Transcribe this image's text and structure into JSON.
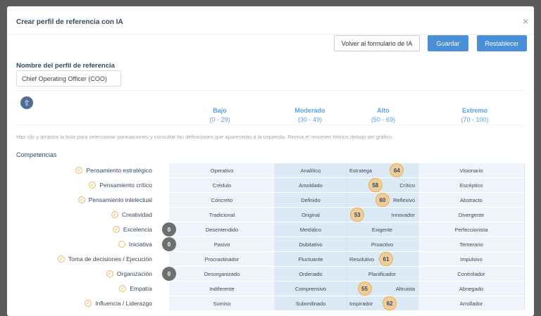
{
  "modal": {
    "title": "Crear perfil de referencia con IA",
    "close_icon": "×"
  },
  "toolbar": {
    "back": "Volver al formulario de IA",
    "save": "Guardar",
    "reset": "Restablecer"
  },
  "profile": {
    "label": "Nombre del perfil de referencia",
    "value": "Chief Operating Officer (COO)"
  },
  "levels": [
    {
      "name": "Bajo",
      "range": "(0 - 29)"
    },
    {
      "name": "Moderado",
      "range": "(30 - 49)"
    },
    {
      "name": "Alto",
      "range": "(50 - 69)"
    },
    {
      "name": "Extremo",
      "range": "(70 - 100)"
    }
  ],
  "hint": "Haz clic y arrastra la bola para seleccionar puntuaciones y consultar las definiciones que aparecerán a la izquierda. Revisa el resumen teórico debajo del gráfico.",
  "section": "Competencias",
  "colors": {
    "accent": "#4a90d9",
    "ball": "#f0b040",
    "ball_off": "#6f6f6f"
  },
  "rows": [
    {
      "name": "Pensamiento estratégico",
      "checked": true,
      "score": 64,
      "cells": [
        "Operativo",
        "Analítico",
        "Estratega",
        "Visionario"
      ]
    },
    {
      "name": "Pensamiento crítico",
      "checked": true,
      "score": 58,
      "cells": [
        "Crédulo",
        "Amoldado",
        "Crítico",
        "Escéptico"
      ]
    },
    {
      "name": "Pensamiento intelectual",
      "checked": true,
      "score": 60,
      "cells": [
        "Concreto",
        "Definido",
        "Reflexivo",
        "Abstracto"
      ]
    },
    {
      "name": "Creatividad",
      "checked": true,
      "score": 53,
      "cells": [
        "Tradicional",
        "Original",
        "Innovador",
        "Divergente"
      ]
    },
    {
      "name": "Excelencia",
      "checked": true,
      "score": 0,
      "cells": [
        "Desentendido",
        "Metódico",
        "Exigente",
        "Perfeccionista"
      ]
    },
    {
      "name": "Iniciativa",
      "checked": false,
      "score": 0,
      "cells": [
        "Pasivo",
        "Dubitativo",
        "Proactivo",
        "Temerario"
      ]
    },
    {
      "name": "Toma de decisiones / Ejecución",
      "checked": true,
      "score": 61,
      "cells": [
        "Procrastinador",
        "Fluctuante",
        "Resolutivo",
        "Impulsivo"
      ]
    },
    {
      "name": "Organización",
      "checked": true,
      "score": 0,
      "cells": [
        "Desorganizado",
        "Ordenado",
        "Planificador",
        "Controlador"
      ]
    },
    {
      "name": "Empatía",
      "checked": true,
      "score": 55,
      "cells": [
        "Indiferente",
        "Comprensivo",
        "Altruista",
        "Abnegado"
      ]
    },
    {
      "name": "Influencia / Liderazgo",
      "checked": true,
      "score": 62,
      "cells": [
        "Sumiso",
        "Subordinado",
        "Inspirador",
        "Arrollador"
      ]
    }
  ]
}
